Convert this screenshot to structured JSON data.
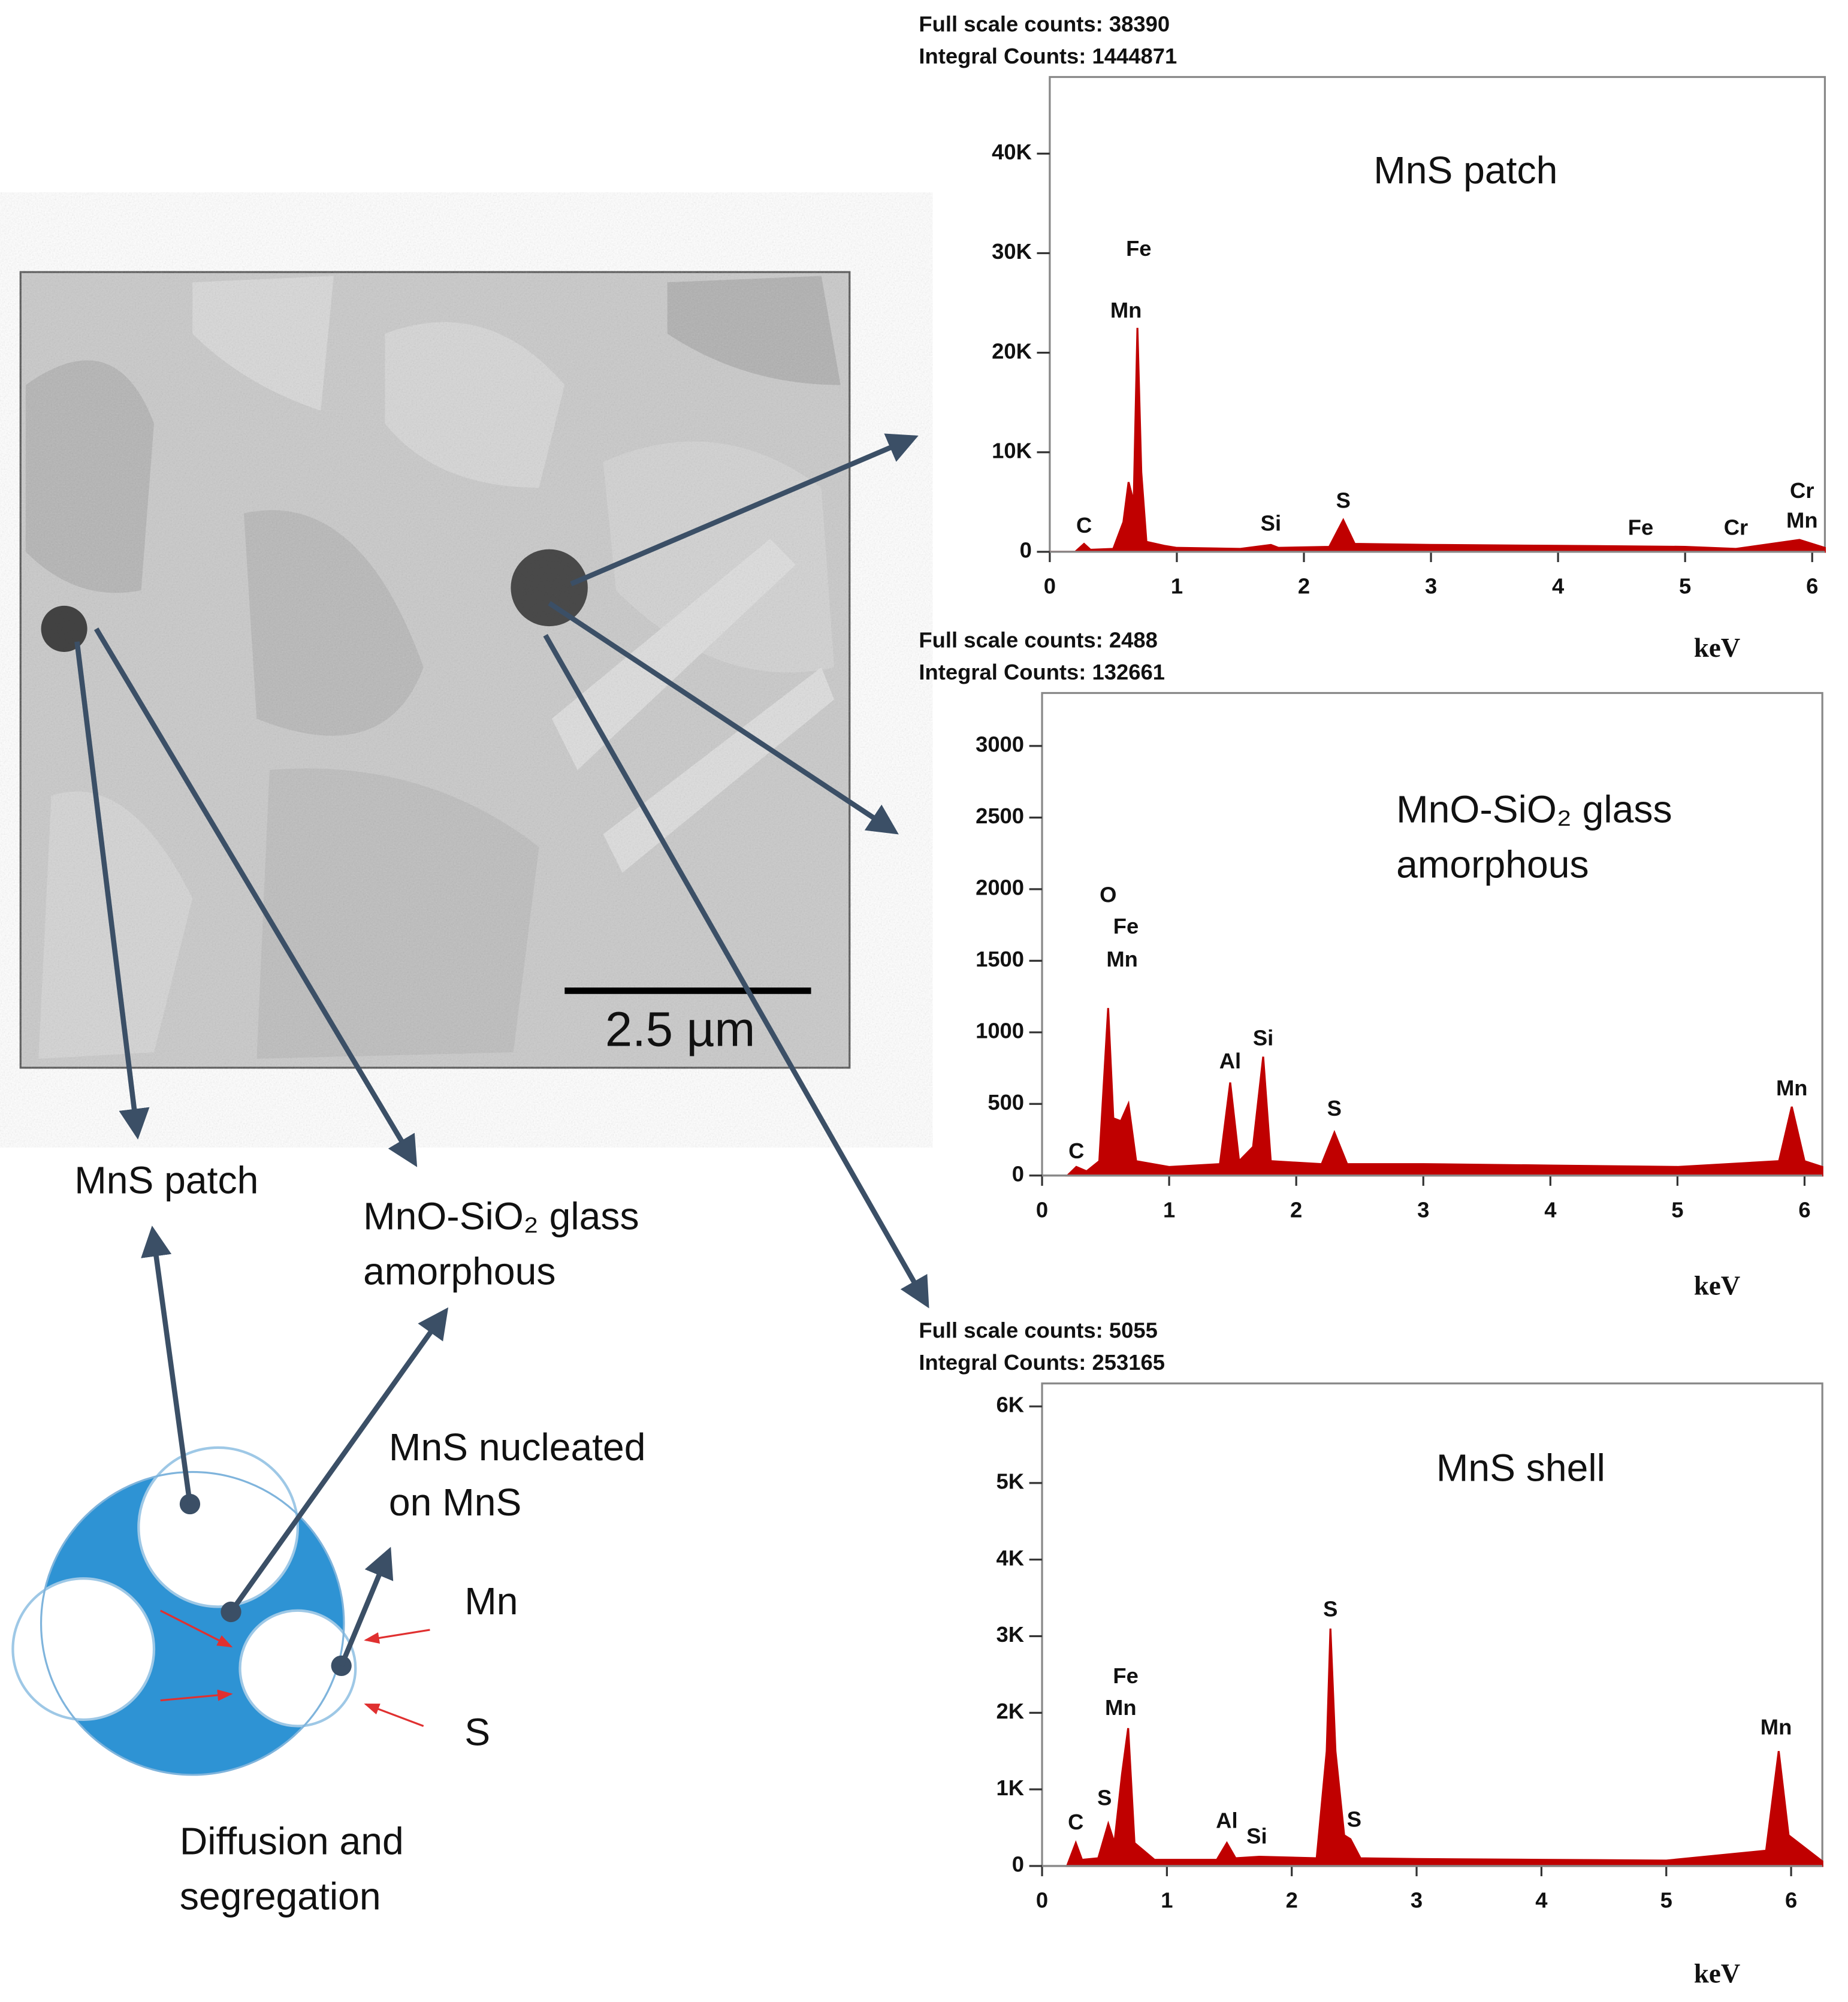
{
  "chart_data": [
    {
      "type": "spectrum",
      "title": "MnS patch",
      "header": [
        "Full scale counts: 38390",
        "Integral Counts: 1444871"
      ],
      "xlabel": "keV",
      "color": "#c00000",
      "xlim": [
        0,
        6.1
      ],
      "xticks": [
        0,
        1,
        2,
        3,
        4,
        5,
        6
      ],
      "ylim": [
        0,
        47700
      ],
      "yticks": [
        0,
        {
          "value": 10000,
          "label": "10K"
        },
        {
          "value": 20000,
          "label": "20K"
        },
        {
          "value": 30000,
          "label": "30K"
        },
        {
          "value": 40000,
          "label": "40K"
        }
      ],
      "x": [
        0,
        0.2,
        0.27,
        0.32,
        0.5,
        0.58,
        0.62,
        0.66,
        0.69,
        0.72,
        0.76,
        0.9,
        1.0,
        1.5,
        1.74,
        1.8,
        2.2,
        2.31,
        2.4,
        3,
        4,
        5,
        5.4,
        5.9,
        6.0,
        6.1
      ],
      "values": [
        0,
        0,
        800,
        200,
        300,
        3000,
        7000,
        5000,
        22500,
        8000,
        1000,
        600,
        400,
        300,
        700,
        400,
        500,
        3200,
        800,
        700,
        600,
        500,
        300,
        1200,
        800,
        400
      ],
      "annotations": [
        {
          "text": "C",
          "x": 0.27,
          "y": 2500
        },
        {
          "text": "Fe",
          "x": 0.7,
          "y": 30300
        },
        {
          "text": "Mn",
          "x": 0.6,
          "y": 24100
        },
        {
          "text": "Si",
          "x": 1.74,
          "y": 2700
        },
        {
          "text": "S",
          "x": 2.31,
          "y": 5000
        },
        {
          "text": "Fe",
          "x": 4.65,
          "y": 2300
        },
        {
          "text": "Cr",
          "x": 5.4,
          "y": 2300
        },
        {
          "text": "Cr",
          "x": 5.92,
          "y": 6000
        },
        {
          "text": "Mn",
          "x": 5.92,
          "y": 3000
        }
      ]
    },
    {
      "type": "spectrum",
      "title": [
        "MnO-SiO₂ glass",
        "amorphous"
      ],
      "header": [
        "Full scale counts: 2488",
        "Integral Counts: 132661"
      ],
      "xlabel": "keV",
      "color": "#c00000",
      "xlim": [
        0,
        6.14
      ],
      "xticks": [
        0,
        1,
        2,
        3,
        4,
        5,
        6
      ],
      "ylim": [
        0,
        3370
      ],
      "yticks": [
        0,
        500,
        1000,
        1500,
        2000,
        2500,
        3000
      ],
      "x": [
        0.2,
        0.27,
        0.35,
        0.45,
        0.52,
        0.56,
        0.62,
        0.68,
        0.74,
        1.0,
        1.4,
        1.48,
        1.55,
        1.66,
        1.74,
        1.8,
        2.2,
        2.3,
        2.4,
        3,
        4,
        5,
        5.8,
        5.9,
        6.0,
        6.14
      ],
      "values": [
        0,
        60,
        30,
        100,
        1170,
        400,
        380,
        500,
        100,
        60,
        80,
        650,
        100,
        200,
        830,
        100,
        80,
        300,
        80,
        80,
        70,
        60,
        100,
        480,
        100,
        60
      ],
      "annotations": [
        {
          "text": "C",
          "x": 0.27,
          "y": 160
        },
        {
          "text": "O",
          "x": 0.52,
          "y": 1950
        },
        {
          "text": "Fe",
          "x": 0.66,
          "y": 1730
        },
        {
          "text": "Mn",
          "x": 0.63,
          "y": 1500
        },
        {
          "text": "Al",
          "x": 1.48,
          "y": 788
        },
        {
          "text": "Si",
          "x": 1.74,
          "y": 949
        },
        {
          "text": "S",
          "x": 2.3,
          "y": 457
        },
        {
          "text": "Mn",
          "x": 5.9,
          "y": 600
        }
      ]
    },
    {
      "type": "spectrum",
      "title": "MnS shell",
      "header": [
        "Full scale counts: 5055",
        "Integral Counts: 253165"
      ],
      "xlabel": "keV",
      "color": "#c00000",
      "xlim": [
        0,
        6.25
      ],
      "xticks": [
        0,
        1,
        2,
        3,
        4,
        5,
        6
      ],
      "ylim": [
        0,
        6300
      ],
      "yticks": [
        0,
        {
          "value": 1000,
          "label": "1K"
        },
        {
          "value": 2000,
          "label": "2K"
        },
        {
          "value": 3000,
          "label": "3K"
        },
        {
          "value": 4000,
          "label": "4K"
        },
        {
          "value": 5000,
          "label": "5K"
        },
        {
          "value": 6000,
          "label": "6K"
        }
      ],
      "x": [
        0.2,
        0.27,
        0.32,
        0.45,
        0.53,
        0.58,
        0.64,
        0.69,
        0.74,
        0.9,
        1.4,
        1.48,
        1.55,
        1.74,
        2.2,
        2.28,
        2.31,
        2.35,
        2.42,
        2.47,
        2.55,
        3,
        4,
        5,
        5.8,
        5.9,
        5.98,
        6.25
      ],
      "values": [
        0,
        300,
        80,
        100,
        550,
        300,
        1200,
        1800,
        300,
        80,
        80,
        300,
        100,
        120,
        100,
        1500,
        3100,
        1500,
        400,
        350,
        100,
        90,
        80,
        70,
        200,
        1500,
        400,
        60
      ],
      "annotations": [
        {
          "text": "C",
          "x": 0.27,
          "y": 553
        },
        {
          "text": "S",
          "x": 0.5,
          "y": 871
        },
        {
          "text": "Fe",
          "x": 0.67,
          "y": 2463
        },
        {
          "text": "Mn",
          "x": 0.63,
          "y": 2045
        },
        {
          "text": "Al",
          "x": 1.48,
          "y": 570
        },
        {
          "text": "Si",
          "x": 1.72,
          "y": 370
        },
        {
          "text": "S",
          "x": 2.31,
          "y": 3335
        },
        {
          "text": "S",
          "x": 2.5,
          "y": 586
        },
        {
          "text": "Mn",
          "x": 5.88,
          "y": 1793
        }
      ]
    }
  ],
  "figure": {
    "scale_bar": "2.5 µm",
    "labels": {
      "mns_patch": "MnS patch",
      "glass": [
        "MnO-SiO₂ glass",
        "amorphous"
      ],
      "nucleated": [
        "MnS nucleated",
        "on MnS"
      ],
      "mn": "Mn",
      "s": "S",
      "diffusion": [
        "Diffusion and",
        "segregation"
      ]
    }
  }
}
